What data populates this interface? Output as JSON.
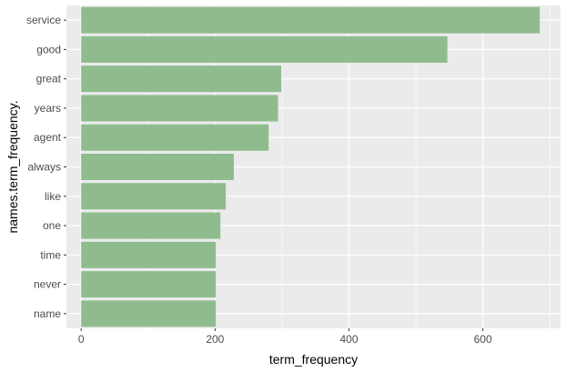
{
  "chart_data": {
    "type": "bar",
    "orientation": "horizontal",
    "categories": [
      "service",
      "good",
      "great",
      "years",
      "agent",
      "always",
      "like",
      "one",
      "time",
      "never",
      "name"
    ],
    "values": [
      685,
      547,
      299,
      294,
      280,
      228,
      216,
      208,
      201,
      201,
      201
    ],
    "xlabel": "term_frequency",
    "ylabel": "names.term_frequency.",
    "xlim": [
      -22,
      716
    ],
    "xticks": [
      0,
      200,
      400,
      600
    ],
    "xtick_labels": [
      "0",
      "200",
      "400",
      "600"
    ],
    "grid": true,
    "bar_color": "#8fbc8f",
    "panel_color": "#ebebeb",
    "grid_color": "#ffffff"
  }
}
